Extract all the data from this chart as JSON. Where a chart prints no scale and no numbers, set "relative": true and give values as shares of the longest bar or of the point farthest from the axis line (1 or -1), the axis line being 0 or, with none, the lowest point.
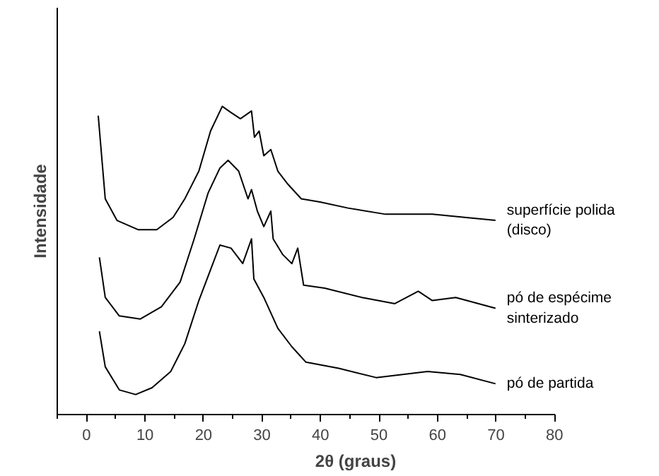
{
  "chart_data": {
    "type": "line",
    "relative": true,
    "xlabel": "2θ (graus)",
    "ylabel": "Intensidade",
    "xlim": [
      -5,
      80
    ],
    "xticks": [
      {
        "value": -5,
        "label": null
      },
      0,
      {
        "value": 5,
        "label": null
      },
      10,
      {
        "value": 15,
        "label": null
      },
      20,
      {
        "value": 25,
        "label": null
      },
      30,
      {
        "value": 35,
        "label": null
      },
      40,
      {
        "value": 45,
        "label": null
      },
      50,
      {
        "value": 55,
        "label": null
      },
      60,
      {
        "value": 65,
        "label": null
      },
      70,
      {
        "value": 75,
        "label": null
      },
      80
    ],
    "tick_labels": "x",
    "grid": false,
    "legend": false,
    "marker": "none",
    "line_style": "solid",
    "series": [
      {
        "name": "superfície polida\n(disco)",
        "color": "#000000",
        "x": [
          2.0,
          3.2,
          5.2,
          8.8,
          12,
          14.8,
          16.8,
          19.2,
          21.2,
          23.2,
          24.7,
          26.3,
          28.2,
          28.7,
          29.5,
          30.3,
          31.5,
          32.7,
          34.3,
          36.7,
          39.9,
          44.7,
          51.1,
          59.1,
          64.6,
          69.9
        ],
        "values": [
          0.97,
          0.7,
          0.63,
          0.6,
          0.6,
          0.64,
          0.7,
          0.79,
          0.92,
          1.0,
          0.98,
          0.96,
          0.985,
          0.9,
          0.92,
          0.84,
          0.86,
          0.79,
          0.75,
          0.7,
          0.69,
          0.67,
          0.65,
          0.65,
          0.64,
          0.63
        ]
      },
      {
        "name": "pó de espécime\nsinterizado",
        "color": "#000000",
        "x": [
          2.2,
          3.2,
          5.6,
          9.2,
          12.8,
          16,
          18.4,
          20.8,
          22.8,
          24.2,
          26,
          27.6,
          28.2,
          29.2,
          30.3,
          31.5,
          31.9,
          33.5,
          35.1,
          36.1,
          37.1,
          40.7,
          47.1,
          52.7,
          56.7,
          59.1,
          63.1,
          69.9
        ],
        "values": [
          0.51,
          0.38,
          0.32,
          0.31,
          0.35,
          0.43,
          0.57,
          0.72,
          0.8,
          0.825,
          0.79,
          0.7,
          0.73,
          0.66,
          0.61,
          0.66,
          0.57,
          0.52,
          0.49,
          0.54,
          0.42,
          0.41,
          0.38,
          0.36,
          0.4,
          0.37,
          0.38,
          0.345
        ]
      },
      {
        "name": "pó de partida",
        "color": "#000000",
        "x": [
          2.2,
          3.2,
          5.6,
          8.4,
          11.2,
          14.4,
          16.8,
          19.2,
          21.2,
          22.8,
          24.7,
          26.7,
          28.2,
          28.6,
          30.3,
          32.7,
          35.1,
          37.5,
          43.1,
          49.5,
          58.3,
          63.9,
          69.9
        ],
        "values": [
          0.27,
          0.155,
          0.08,
          0.065,
          0.087,
          0.14,
          0.23,
          0.37,
          0.47,
          0.55,
          0.54,
          0.49,
          0.57,
          0.44,
          0.38,
          0.28,
          0.22,
          0.17,
          0.15,
          0.12,
          0.14,
          0.13,
          0.1
        ]
      }
    ]
  }
}
